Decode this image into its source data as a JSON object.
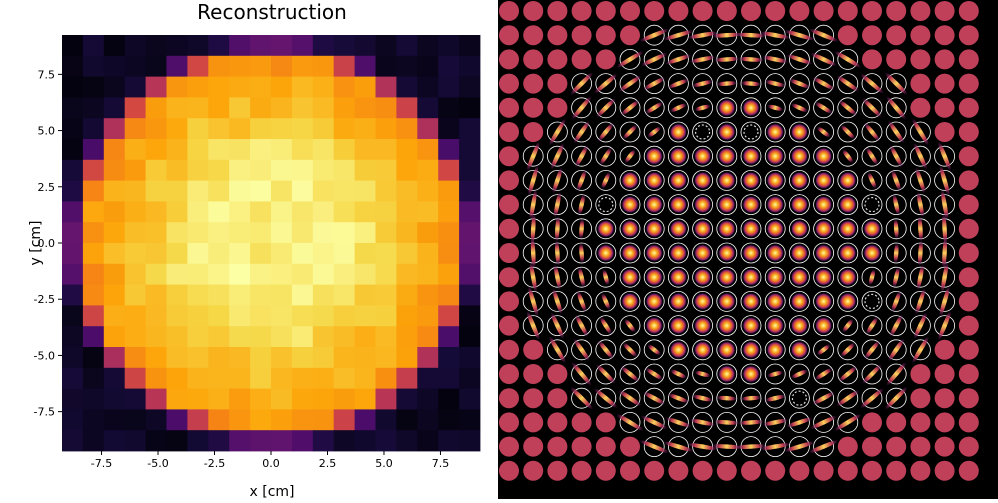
{
  "chart_data": [
    {
      "type": "heatmap",
      "title": "Reconstruction",
      "xlabel": "x [cm]",
      "ylabel": "y [cm]",
      "xlim": [
        -9.25,
        9.25
      ],
      "ylim": [
        -9.25,
        9.25
      ],
      "xticks": [
        -7.5,
        -5.0,
        -2.5,
        0.0,
        2.5,
        5.0,
        7.5
      ],
      "yticks": [
        7.5,
        5.0,
        2.5,
        0.0,
        -2.5,
        -5.0,
        -7.5
      ],
      "xtick_labels": [
        "-7.5",
        "-5.0",
        "-2.5",
        "0.0",
        "2.5",
        "5.0",
        "7.5"
      ],
      "ytick_labels": [
        "7.5",
        "5.0",
        "2.5",
        "0.0",
        "-2.5",
        "-5.0",
        "-7.5"
      ],
      "colormap": "inferno",
      "grid": false,
      "bins": 20,
      "pixel_pitch_cm": 0.925,
      "disk_radius_cm": 8.7,
      "value_range": [
        0,
        1
      ]
    },
    {
      "type": "heatmap",
      "description_free": true,
      "grid_size": 20,
      "background_color": "#000000",
      "inactive_color": "#c0405a",
      "ring_color": "#ffffff",
      "active_radius_cells": 9.2,
      "dead_channels": [
        [
          5,
          8
        ],
        [
          5,
          10
        ],
        [
          8,
          4
        ],
        [
          8,
          15
        ],
        [
          12,
          15
        ],
        [
          16,
          12
        ]
      ]
    }
  ]
}
